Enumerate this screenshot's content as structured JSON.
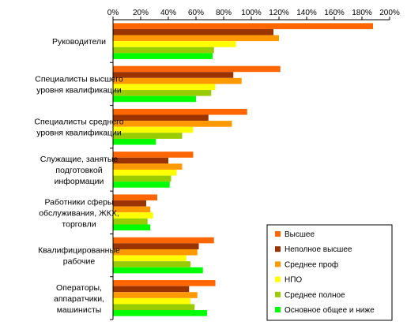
{
  "chart_data": {
    "type": "bar",
    "orientation": "horizontal",
    "title": "",
    "xlabel": "",
    "ylabel": "",
    "xlim": [
      0,
      200
    ],
    "x_ticks": [
      "0%",
      "20%",
      "40%",
      "60%",
      "80%",
      "100%",
      "120%",
      "140%",
      "160%",
      "180%",
      "200%"
    ],
    "x_axis_position": "top",
    "grid": false,
    "legend_position": "bottom-right",
    "categories": [
      [
        "Руководители"
      ],
      [
        "Специалисты высшего",
        "уровня квалификации"
      ],
      [
        "Специалисты среднего",
        "уровня квалификации"
      ],
      [
        "Служащие, занятые",
        "подготовкой",
        "информации"
      ],
      [
        "Работники сферы",
        "обслуживания, ЖКХ,",
        "торговли"
      ],
      [
        "Квалифицированные",
        "рабочие"
      ],
      [
        "Операторы,",
        "аппаратчики,",
        "машинисты"
      ]
    ],
    "series": [
      {
        "name": "Высшее",
        "color": "#FF6600",
        "values": [
          188,
          121,
          97,
          58,
          32,
          73,
          74
        ]
      },
      {
        "name": "Неполное высшее",
        "color": "#993300",
        "values": [
          116,
          87,
          69,
          40,
          24,
          62,
          55
        ]
      },
      {
        "name": "Среднее проф",
        "color": "#FF9900",
        "values": [
          120,
          93,
          86,
          50,
          27,
          61,
          61
        ]
      },
      {
        "name": "НПО",
        "color": "#FFFF00",
        "values": [
          89,
          74,
          58,
          46,
          29,
          53,
          56
        ]
      },
      {
        "name": "Среднее полное",
        "color": "#99CC00",
        "values": [
          73,
          71,
          50,
          42,
          25,
          56,
          59
        ]
      },
      {
        "name": "Основное общее и ниже",
        "color": "#00FF00",
        "values": [
          72,
          60,
          31,
          41,
          27,
          65,
          68
        ]
      }
    ]
  }
}
